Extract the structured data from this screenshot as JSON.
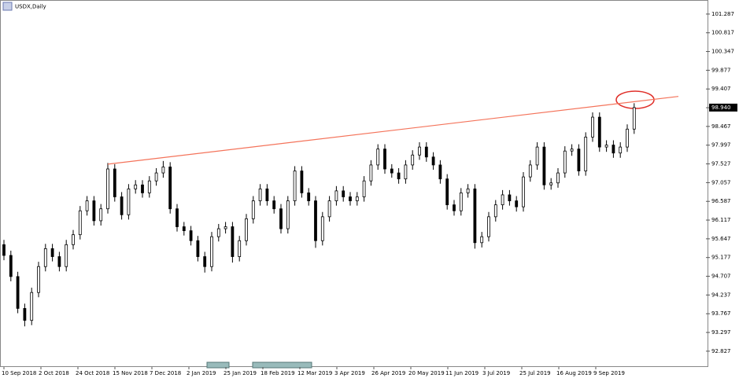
{
  "chart_data": {
    "type": "candlestick",
    "title": "USDX,Daily",
    "categories": [
      "10 Sep 2018",
      "2 Oct 2018",
      "24 Oct 2018",
      "15 Nov 2018",
      "7 Dec 2018",
      "2 Jan 2019",
      "25 Jan 2019",
      "18 Feb 2019",
      "12 Mar 2019",
      "3 Apr 2019",
      "26 Apr 2019",
      "20 May 2019",
      "11 Jun 2019",
      "3 Jul 2019",
      "25 Jul 2019",
      "16 Aug 2019",
      "9 Sep 2019"
    ],
    "ylim": [
      92.43,
      101.64
    ],
    "yticks": [
      {
        "value": 101.287,
        "label": "101.287"
      },
      {
        "value": 100.817,
        "label": "100.817"
      },
      {
        "value": 100.347,
        "label": "100.347"
      },
      {
        "value": 99.877,
        "label": "99.877"
      },
      {
        "value": 99.407,
        "label": "99.407"
      },
      {
        "value": 98.937,
        "label": "98.937"
      },
      {
        "value": 98.467,
        "label": "98.467"
      },
      {
        "value": 97.997,
        "label": "97.997"
      },
      {
        "value": 97.527,
        "label": "97.527"
      },
      {
        "value": 97.057,
        "label": "97.057"
      },
      {
        "value": 96.587,
        "label": "96.587"
      },
      {
        "value": 96.117,
        "label": "96.117"
      },
      {
        "value": 95.647,
        "label": "95.647"
      },
      {
        "value": 95.177,
        "label": "95.177"
      },
      {
        "value": 94.707,
        "label": "94.707"
      },
      {
        "value": 94.237,
        "label": "94.237"
      },
      {
        "value": 93.767,
        "label": "93.767"
      },
      {
        "value": 93.297,
        "label": "93.297"
      },
      {
        "value": 92.827,
        "label": "92.827"
      }
    ],
    "up_color": "#ffffff",
    "down_color": "#000000",
    "open": [
      95.5,
      95.23,
      94.7,
      93.9,
      93.6,
      94.3,
      94.95,
      95.4,
      95.2,
      94.95,
      95.5,
      95.75,
      96.35,
      96.6,
      96.1,
      96.4,
      97.4,
      96.7,
      96.25,
      96.9,
      97.0,
      96.8,
      97.1,
      97.3,
      97.45,
      96.4,
      95.95,
      95.85,
      95.6,
      95.2,
      94.95,
      95.7,
      95.9,
      95.95,
      95.2,
      95.6,
      96.15,
      96.6,
      96.9,
      96.6,
      96.4,
      95.9,
      96.6,
      97.35,
      96.8,
      96.6,
      95.6,
      96.2,
      96.6,
      96.85,
      96.7,
      96.6,
      96.7,
      97.1,
      97.5,
      97.9,
      97.4,
      97.3,
      97.15,
      97.5,
      97.75,
      97.95,
      97.7,
      97.5,
      97.15,
      96.5,
      96.35,
      96.8,
      96.9,
      95.55,
      95.7,
      96.2,
      96.5,
      96.75,
      96.6,
      96.45,
      97.2,
      97.5,
      97.95,
      97.0,
      97.05,
      97.3,
      97.85,
      97.9,
      97.35,
      98.2,
      98.7,
      97.95,
      98.0,
      97.8,
      97.95,
      98.4
    ],
    "high": [
      95.62,
      95.35,
      94.82,
      94.02,
      94.42,
      95.07,
      95.52,
      95.52,
      95.32,
      95.62,
      95.87,
      96.47,
      96.72,
      96.72,
      96.52,
      97.55,
      97.52,
      96.82,
      97.02,
      97.12,
      97.12,
      97.22,
      97.42,
      97.6,
      97.57,
      96.52,
      96.07,
      95.97,
      95.72,
      95.32,
      95.82,
      96.02,
      96.07,
      96.07,
      95.72,
      96.27,
      96.72,
      97.02,
      97.02,
      96.72,
      96.52,
      96.72,
      97.47,
      97.47,
      96.92,
      96.72,
      96.32,
      96.72,
      96.97,
      96.97,
      96.82,
      96.82,
      97.22,
      97.62,
      98.02,
      98.02,
      97.52,
      97.42,
      97.62,
      97.87,
      98.07,
      98.07,
      97.82,
      97.62,
      97.27,
      96.62,
      96.92,
      97.02,
      97.02,
      95.82,
      96.32,
      96.62,
      96.87,
      96.87,
      96.72,
      97.32,
      97.62,
      98.07,
      98.07,
      97.17,
      97.42,
      97.97,
      98.02,
      98.02,
      98.32,
      98.82,
      98.82,
      98.12,
      98.12,
      98.07,
      98.52,
      99.05
    ],
    "low": [
      95.11,
      94.58,
      93.78,
      93.45,
      93.48,
      94.18,
      94.83,
      95.08,
      94.83,
      94.83,
      95.38,
      95.63,
      96.23,
      95.98,
      95.98,
      96.28,
      96.58,
      96.13,
      96.13,
      96.78,
      96.68,
      96.68,
      96.98,
      97.18,
      96.28,
      95.83,
      95.73,
      95.48,
      95.08,
      94.8,
      94.83,
      95.58,
      95.78,
      95.05,
      95.08,
      95.48,
      96.03,
      96.48,
      96.48,
      96.28,
      95.78,
      95.78,
      96.48,
      96.68,
      96.48,
      95.42,
      95.48,
      96.08,
      96.48,
      96.58,
      96.48,
      96.48,
      96.58,
      96.98,
      97.38,
      97.28,
      97.18,
      97.03,
      97.03,
      97.38,
      97.63,
      97.58,
      97.38,
      97.03,
      96.38,
      96.23,
      96.23,
      96.68,
      95.4,
      95.43,
      95.58,
      96.08,
      96.38,
      96.48,
      96.33,
      96.33,
      97.08,
      97.38,
      96.88,
      96.88,
      96.93,
      97.18,
      97.73,
      97.23,
      97.23,
      98.08,
      97.83,
      97.83,
      97.68,
      97.68,
      97.83,
      98.28
    ],
    "close": [
      95.23,
      94.7,
      93.9,
      93.6,
      94.3,
      94.95,
      95.4,
      95.2,
      94.95,
      95.5,
      95.75,
      96.35,
      96.6,
      96.1,
      96.4,
      97.4,
      96.7,
      96.25,
      96.9,
      97.0,
      96.8,
      97.1,
      97.3,
      97.45,
      96.4,
      95.95,
      95.85,
      95.6,
      95.2,
      94.95,
      95.7,
      95.9,
      95.95,
      95.2,
      95.6,
      96.15,
      96.6,
      96.9,
      96.6,
      96.4,
      95.9,
      96.6,
      97.35,
      96.8,
      96.6,
      95.6,
      96.2,
      96.6,
      96.85,
      96.7,
      96.6,
      96.7,
      97.1,
      97.5,
      97.9,
      97.4,
      97.3,
      97.15,
      97.5,
      97.75,
      97.95,
      97.7,
      97.5,
      97.15,
      96.5,
      96.35,
      96.8,
      96.9,
      95.55,
      95.7,
      96.2,
      96.5,
      96.75,
      96.6,
      96.45,
      97.2,
      97.5,
      97.95,
      97.0,
      97.05,
      97.3,
      97.85,
      97.9,
      97.35,
      98.2,
      98.7,
      97.95,
      98.0,
      97.8,
      97.95,
      98.4,
      98.94
    ],
    "trendline": {
      "values": [
        97.52,
        99.22
      ],
      "color": "#f4735a"
    },
    "last_price": {
      "value": 98.94,
      "label": "98.940"
    }
  }
}
